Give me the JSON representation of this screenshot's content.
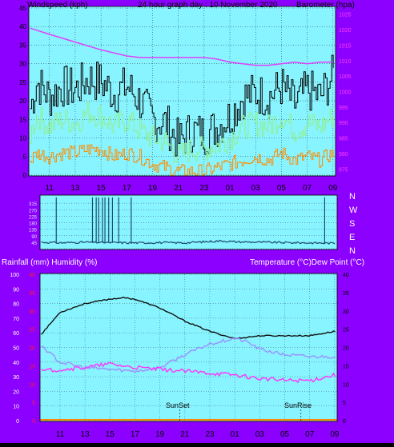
{
  "header": {
    "left": "Windspeed (kph)",
    "center": "24 hour graph day : 10 November 2020",
    "right": "Barometer (hpa)"
  },
  "mid": {
    "left": "Rainfall (mm)  Humidity (%)",
    "right": "Temperature (°C)Dew Point (°C)"
  },
  "colors": {
    "frame": "#8c00ff",
    "plot_bg": "#88f4ff",
    "wind_gust": "#000000",
    "wind_avg": "#8ff08f",
    "wind_low": "#ff8c00",
    "barometer": "#e040ff",
    "direction": "#1c4e6e",
    "temperature": "#111111",
    "dewpoint": "#9a90ff",
    "humidity": "#ff30ff",
    "rainfall": "#ff8c00",
    "red_axis": "#ff2020"
  },
  "direction_labels": [
    "N",
    "W",
    "S",
    "E",
    "N"
  ],
  "x_ticks": [
    "11",
    "13",
    "15",
    "17",
    "19",
    "21",
    "23",
    "01",
    "03",
    "05",
    "07",
    "09"
  ],
  "annotations": {
    "sunset": "SunSet",
    "sunrise": "SunRise"
  },
  "chart_data": [
    {
      "type": "line",
      "name": "wind-barometer",
      "x_range_hours": [
        9.4,
        33.2
      ],
      "left_axis": {
        "ticks": [
          0,
          5,
          10,
          15,
          20,
          25,
          30,
          35,
          40,
          45
        ],
        "ylim": [
          0,
          45
        ]
      },
      "right_axis": {
        "ticks": [
          975,
          980,
          985,
          990,
          995,
          1000,
          1005,
          1010,
          1015,
          1020,
          1025
        ],
        "ylim": [
          973,
          1027
        ]
      },
      "series": [
        {
          "key": "gust",
          "x": [
            9.5,
            10,
            11,
            12,
            13,
            14,
            15,
            16,
            17,
            18,
            19,
            20,
            21,
            22,
            23,
            24,
            25,
            26,
            27,
            28,
            29,
            30,
            31,
            32,
            33
          ],
          "y": [
            18,
            25,
            21,
            24,
            23,
            26,
            25,
            22,
            24,
            20,
            15,
            14,
            9,
            12,
            11,
            13,
            16,
            21,
            22,
            21,
            24,
            19,
            23,
            21,
            27
          ]
        },
        {
          "key": "avg",
          "x": [
            9.5,
            10,
            11,
            12,
            13,
            14,
            15,
            16,
            17,
            18,
            19,
            20,
            21,
            22,
            23,
            24,
            25,
            26,
            27,
            28,
            29,
            30,
            31,
            32,
            33
          ],
          "y": [
            11,
            16,
            13,
            15,
            14,
            17,
            16,
            13,
            15,
            12,
            10,
            9,
            5,
            7,
            7,
            8,
            10,
            13,
            14,
            13,
            16,
            12,
            14,
            13,
            16
          ]
        },
        {
          "key": "low",
          "x": [
            9.5,
            10,
            11,
            12,
            13,
            14,
            15,
            16,
            17,
            18,
            19,
            20,
            21,
            22,
            23,
            24,
            25,
            26,
            27,
            28,
            29,
            30,
            31,
            32,
            33
          ],
          "y": [
            4,
            6,
            5,
            6,
            6,
            7,
            7,
            5,
            6,
            5,
            3,
            2,
            1,
            1,
            1,
            2,
            3,
            4,
            5,
            4,
            6,
            4,
            5,
            4,
            6
          ]
        },
        {
          "key": "barometer",
          "x": [
            9.5,
            11,
            13,
            15,
            17,
            18,
            19,
            21,
            23,
            24,
            25,
            26,
            27,
            28,
            29,
            30,
            31,
            32,
            33
          ],
          "y": [
            1020.5,
            1018.5,
            1016,
            1013.5,
            1011.5,
            1011,
            1011,
            1011,
            1011,
            1010.5,
            1009.5,
            1009,
            1008.5,
            1008.5,
            1009,
            1009.5,
            1009,
            1009.5,
            1009.5
          ]
        }
      ]
    },
    {
      "type": "line",
      "name": "wind-direction",
      "x_range_hours": [
        9.4,
        33.2
      ],
      "ylim": [
        0,
        360
      ],
      "series": [
        {
          "key": "direction",
          "x": [
            9.5,
            11,
            13,
            15,
            17,
            19,
            21,
            23,
            24,
            25,
            27,
            29,
            31,
            33
          ],
          "y": [
            45,
            40,
            45,
            42,
            40,
            42,
            40,
            50,
            55,
            48,
            45,
            42,
            40,
            38
          ]
        }
      ]
    },
    {
      "type": "line",
      "name": "temperature-humidity",
      "x_range_hours": [
        9.4,
        33.2
      ],
      "left_axis": {
        "ticks": [
          0,
          10,
          20,
          30,
          40,
          50,
          60,
          70,
          80,
          90,
          100
        ],
        "ylim": [
          0,
          100
        ]
      },
      "left_axis_red": {
        "ticks": [
          0,
          5,
          10,
          15,
          20,
          25,
          30,
          35,
          40
        ],
        "ylim": [
          0,
          40
        ]
      },
      "right_axis": {
        "ticks": [
          0,
          5,
          10,
          15,
          20,
          25,
          30,
          35,
          40
        ],
        "ylim": [
          0,
          40
        ]
      },
      "series": [
        {
          "key": "humidity",
          "x": [
            9.5,
            11,
            13,
            15,
            16,
            17,
            19,
            21,
            23,
            25,
            27,
            29,
            31,
            33
          ],
          "y": [
            59,
            74,
            80,
            83,
            84,
            83,
            77,
            68,
            61,
            56,
            58,
            58,
            58,
            61
          ]
        },
        {
          "key": "temperature",
          "x": [
            9.5,
            11,
            13,
            15,
            17,
            19,
            21,
            23,
            25,
            26,
            27,
            29,
            31,
            33
          ],
          "y": [
            20.5,
            16,
            14.5,
            14,
            13.5,
            14.5,
            18,
            21,
            22.5,
            21.5,
            19.5,
            18,
            17.5,
            17.5
          ]
        },
        {
          "key": "dewpoint",
          "x": [
            9.5,
            11,
            13,
            15,
            17,
            19,
            21,
            23,
            25,
            27,
            29,
            31,
            33
          ],
          "y": [
            13.5,
            14,
            14.5,
            15.5,
            14.5,
            14,
            13.5,
            13,
            12.5,
            11.5,
            11,
            11,
            12.5
          ]
        },
        {
          "key": "rainfall",
          "x": [
            9.5,
            33
          ],
          "y": [
            0,
            0
          ]
        }
      ],
      "markers": [
        {
          "key": "sunset",
          "x": 20.6
        },
        {
          "key": "sunrise",
          "x": 30.3
        }
      ]
    }
  ]
}
